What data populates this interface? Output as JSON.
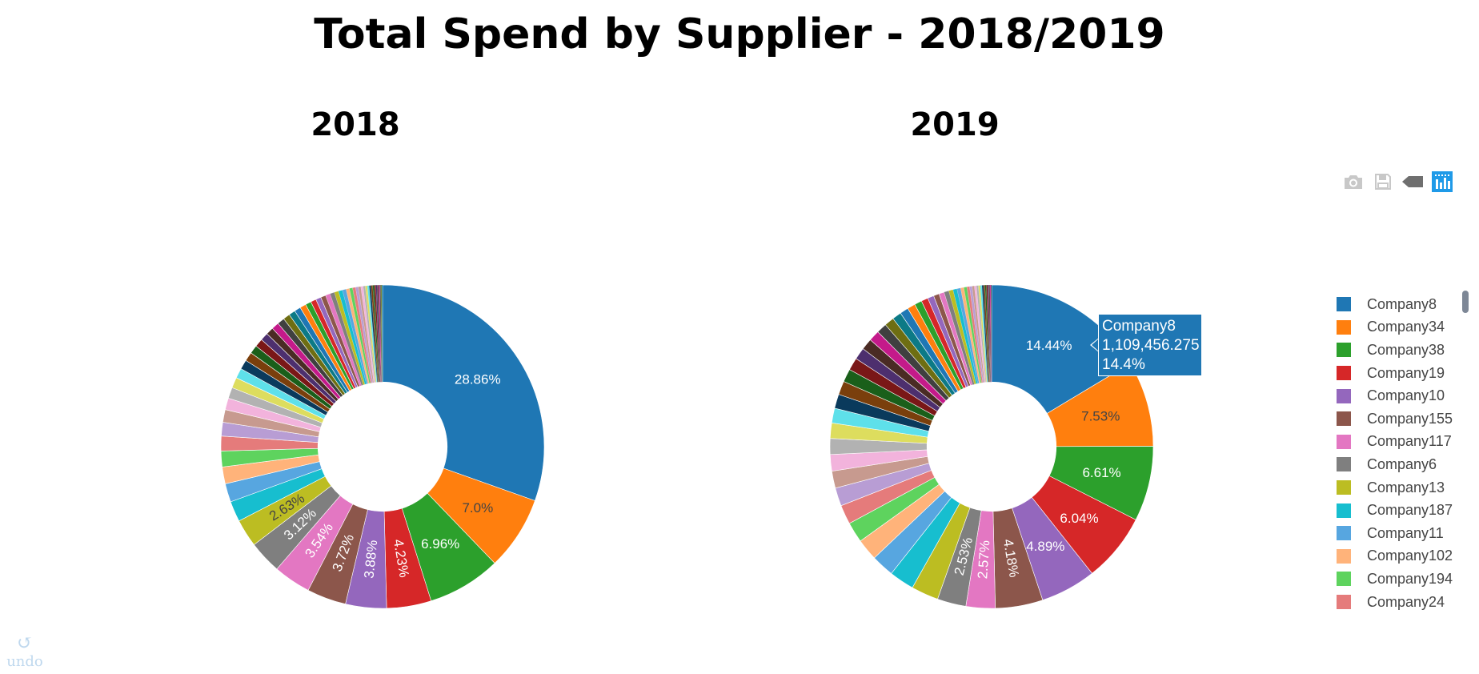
{
  "title": "Total Spend by Supplier - 2018/2019",
  "colors": [
    "#1f77b4",
    "#ff7f0e",
    "#2ca02c",
    "#d62728",
    "#9467bd",
    "#8c564b",
    "#e377c2",
    "#7f7f7f",
    "#bcbd22",
    "#17becf",
    "#57a6e0",
    "#ffb37a",
    "#5ed35e",
    "#e57b7b",
    "#b89dd4",
    "#c79a8f",
    "#f2b3dc",
    "#b2b2b2",
    "#dddd5e",
    "#5ee0ea",
    "#0a3a5c",
    "#7a3f0c",
    "#1a5f1a",
    "#7a1717",
    "#4d2f6e",
    "#4a2b24",
    "#c41a8a",
    "#404040",
    "#6e6e12",
    "#0c7a86"
  ],
  "chart_data": [
    {
      "type": "pie",
      "hole": 0.4,
      "subtitle": "2018",
      "slices": [
        {
          "label": "Company8",
          "value": 28.86,
          "text": "28.86%"
        },
        {
          "label": "Company34",
          "value": 7.0,
          "text": "7.0%"
        },
        {
          "label": "Company38",
          "value": 6.96,
          "text": "6.96%"
        },
        {
          "label": "Company19",
          "value": 4.23,
          "text": "4.23%"
        },
        {
          "label": "Company10",
          "value": 3.88,
          "text": "3.88%"
        },
        {
          "label": "Company155",
          "value": 3.72,
          "text": "3.72%"
        },
        {
          "label": "Company117",
          "value": 3.54,
          "text": "3.54%"
        },
        {
          "label": "Company6",
          "value": 3.12,
          "text": "3.12%"
        },
        {
          "label": "Company13",
          "value": 2.63,
          "text": "2.63%"
        },
        {
          "label": "Company187",
          "value": 1.95,
          "text": ""
        },
        {
          "label": "Company11",
          "value": 1.75,
          "text": ""
        },
        {
          "label": "Company102",
          "value": 1.6,
          "text": ""
        },
        {
          "label": "Company194",
          "value": 1.5,
          "text": ""
        },
        {
          "label": "Company24",
          "value": 1.4,
          "text": ""
        },
        {
          "label": "",
          "value": 1.3,
          "text": ""
        },
        {
          "label": "",
          "value": 1.2,
          "text": ""
        },
        {
          "label": "",
          "value": 1.1,
          "text": ""
        },
        {
          "label": "",
          "value": 1.05,
          "text": ""
        },
        {
          "label": "",
          "value": 1.0,
          "text": ""
        },
        {
          "label": "",
          "value": 0.95,
          "text": ""
        },
        {
          "label": "",
          "value": 0.9,
          "text": ""
        },
        {
          "label": "",
          "value": 0.85,
          "text": ""
        },
        {
          "label": "",
          "value": 0.8,
          "text": ""
        },
        {
          "label": "",
          "value": 0.78,
          "text": ""
        },
        {
          "label": "",
          "value": 0.75,
          "text": ""
        },
        {
          "label": "",
          "value": 0.72,
          "text": ""
        },
        {
          "label": "",
          "value": 0.7,
          "text": ""
        },
        {
          "label": "",
          "value": 0.68,
          "text": ""
        },
        {
          "label": "",
          "value": 0.65,
          "text": ""
        },
        {
          "label": "",
          "value": 0.62,
          "text": ""
        },
        {
          "label": "",
          "value": 0.6,
          "text": ""
        },
        {
          "label": "",
          "value": 0.58,
          "text": ""
        },
        {
          "label": "",
          "value": 0.55,
          "text": ""
        },
        {
          "label": "",
          "value": 0.52,
          "text": ""
        },
        {
          "label": "",
          "value": 0.5,
          "text": ""
        },
        {
          "label": "",
          "value": 0.48,
          "text": ""
        },
        {
          "label": "",
          "value": 0.45,
          "text": ""
        },
        {
          "label": "",
          "value": 0.42,
          "text": ""
        },
        {
          "label": "",
          "value": 0.4,
          "text": ""
        },
        {
          "label": "",
          "value": 0.38,
          "text": ""
        },
        {
          "label": "",
          "value": 0.35,
          "text": ""
        },
        {
          "label": "",
          "value": 0.32,
          "text": ""
        },
        {
          "label": "",
          "value": 0.3,
          "text": ""
        },
        {
          "label": "",
          "value": 0.28,
          "text": ""
        },
        {
          "label": "",
          "value": 0.26,
          "text": ""
        },
        {
          "label": "",
          "value": 0.24,
          "text": ""
        },
        {
          "label": "",
          "value": 0.22,
          "text": ""
        },
        {
          "label": "",
          "value": 0.2,
          "text": ""
        },
        {
          "label": "",
          "value": 0.19,
          "text": ""
        },
        {
          "label": "",
          "value": 0.18,
          "text": ""
        },
        {
          "label": "",
          "value": 0.17,
          "text": ""
        },
        {
          "label": "",
          "value": 0.16,
          "text": ""
        },
        {
          "label": "",
          "value": 0.15,
          "text": ""
        },
        {
          "label": "",
          "value": 0.14,
          "text": ""
        },
        {
          "label": "",
          "value": 0.13,
          "text": ""
        },
        {
          "label": "",
          "value": 0.12,
          "text": ""
        },
        {
          "label": "",
          "value": 0.11,
          "text": ""
        },
        {
          "label": "",
          "value": 0.1,
          "text": ""
        },
        {
          "label": "",
          "value": 0.09,
          "text": ""
        },
        {
          "label": "",
          "value": 0.08,
          "text": ""
        }
      ]
    },
    {
      "type": "pie",
      "hole": 0.4,
      "subtitle": "2019",
      "slices": [
        {
          "label": "Company8",
          "value": 14.44,
          "text": "14.44%"
        },
        {
          "label": "Company34",
          "value": 7.53,
          "text": "7.53%"
        },
        {
          "label": "Company38",
          "value": 6.61,
          "text": "6.61%"
        },
        {
          "label": "Company13",
          "value": 6.04,
          "text": "6.04%"
        },
        {
          "label": "Company19",
          "value": 4.89,
          "text": "4.89%"
        },
        {
          "label": "Company10",
          "value": 4.18,
          "text": "4.18%"
        },
        {
          "label": "",
          "value": 2.57,
          "text": "2.57%"
        },
        {
          "label": "",
          "value": 2.53,
          "text": "2.53%"
        },
        {
          "label": "",
          "value": 2.4,
          "text": ""
        },
        {
          "label": "",
          "value": 2.2,
          "text": ""
        },
        {
          "label": "",
          "value": 2.0,
          "text": ""
        },
        {
          "label": "",
          "value": 1.9,
          "text": ""
        },
        {
          "label": "",
          "value": 1.8,
          "text": ""
        },
        {
          "label": "",
          "value": 1.7,
          "text": ""
        },
        {
          "label": "",
          "value": 1.6,
          "text": ""
        },
        {
          "label": "",
          "value": 1.5,
          "text": ""
        },
        {
          "label": "",
          "value": 1.45,
          "text": ""
        },
        {
          "label": "",
          "value": 1.4,
          "text": ""
        },
        {
          "label": "",
          "value": 1.35,
          "text": ""
        },
        {
          "label": "",
          "value": 1.3,
          "text": ""
        },
        {
          "label": "",
          "value": 1.25,
          "text": ""
        },
        {
          "label": "",
          "value": 1.2,
          "text": ""
        },
        {
          "label": "",
          "value": 1.15,
          "text": ""
        },
        {
          "label": "",
          "value": 1.1,
          "text": ""
        },
        {
          "label": "",
          "value": 1.05,
          "text": ""
        },
        {
          "label": "",
          "value": 1.0,
          "text": ""
        },
        {
          "label": "",
          "value": 0.95,
          "text": ""
        },
        {
          "label": "",
          "value": 0.9,
          "text": ""
        },
        {
          "label": "",
          "value": 0.85,
          "text": ""
        },
        {
          "label": "",
          "value": 0.8,
          "text": ""
        },
        {
          "label": "",
          "value": 0.75,
          "text": ""
        },
        {
          "label": "",
          "value": 0.7,
          "text": ""
        },
        {
          "label": "",
          "value": 0.65,
          "text": ""
        },
        {
          "label": "",
          "value": 0.6,
          "text": ""
        },
        {
          "label": "",
          "value": 0.55,
          "text": ""
        },
        {
          "label": "",
          "value": 0.5,
          "text": ""
        },
        {
          "label": "",
          "value": 0.46,
          "text": ""
        },
        {
          "label": "",
          "value": 0.42,
          "text": ""
        },
        {
          "label": "",
          "value": 0.38,
          "text": ""
        },
        {
          "label": "",
          "value": 0.35,
          "text": ""
        },
        {
          "label": "",
          "value": 0.32,
          "text": ""
        },
        {
          "label": "",
          "value": 0.29,
          "text": ""
        },
        {
          "label": "",
          "value": 0.26,
          "text": ""
        },
        {
          "label": "",
          "value": 0.24,
          "text": ""
        },
        {
          "label": "",
          "value": 0.22,
          "text": ""
        },
        {
          "label": "",
          "value": 0.2,
          "text": ""
        },
        {
          "label": "",
          "value": 0.18,
          "text": ""
        },
        {
          "label": "",
          "value": 0.17,
          "text": ""
        },
        {
          "label": "",
          "value": 0.16,
          "text": ""
        },
        {
          "label": "",
          "value": 0.15,
          "text": ""
        },
        {
          "label": "",
          "value": 0.14,
          "text": ""
        },
        {
          "label": "",
          "value": 0.13,
          "text": ""
        },
        {
          "label": "",
          "value": 0.12,
          "text": ""
        },
        {
          "label": "",
          "value": 0.11,
          "text": ""
        },
        {
          "label": "",
          "value": 0.1,
          "text": ""
        },
        {
          "label": "",
          "value": 0.09,
          "text": ""
        },
        {
          "label": "",
          "value": 0.08,
          "text": ""
        },
        {
          "label": "",
          "value": 0.07,
          "text": ""
        }
      ]
    }
  ],
  "legend": {
    "placement": "right",
    "items": [
      {
        "label": "Company8",
        "color": "#1f77b4"
      },
      {
        "label": "Company34",
        "color": "#ff7f0e"
      },
      {
        "label": "Company38",
        "color": "#2ca02c"
      },
      {
        "label": "Company19",
        "color": "#d62728"
      },
      {
        "label": "Company10",
        "color": "#9467bd"
      },
      {
        "label": "Company155",
        "color": "#8c564b"
      },
      {
        "label": "Company117",
        "color": "#e377c2"
      },
      {
        "label": "Company6",
        "color": "#7f7f7f"
      },
      {
        "label": "Company13",
        "color": "#bcbd22"
      },
      {
        "label": "Company187",
        "color": "#17becf"
      },
      {
        "label": "Company11",
        "color": "#57a6e0"
      },
      {
        "label": "Company102",
        "color": "#ffb37a"
      },
      {
        "label": "Company194",
        "color": "#5ed35e"
      },
      {
        "label": "Company24",
        "color": "#e57b7b"
      }
    ]
  },
  "hover": {
    "name": "Company8",
    "value": "1,109,456.275",
    "percent": "14.4%",
    "color": "#1f77b4"
  },
  "modebar": {
    "buttons": [
      "camera-icon",
      "save-icon",
      "tag-icon",
      "bar-chart-icon"
    ],
    "active_color": "#1f9ae8",
    "inactive_color": "#c8c8c8"
  },
  "undo": {
    "label": "undo",
    "color": "#bfd8ee"
  }
}
